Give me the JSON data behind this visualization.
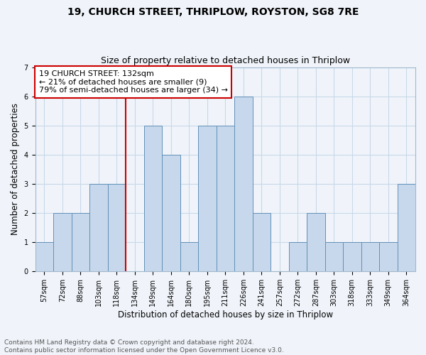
{
  "title": "19, CHURCH STREET, THRIPLOW, ROYSTON, SG8 7RE",
  "subtitle": "Size of property relative to detached houses in Thriplow",
  "xlabel": "Distribution of detached houses by size in Thriplow",
  "ylabel": "Number of detached properties",
  "bin_labels": [
    "57sqm",
    "72sqm",
    "88sqm",
    "103sqm",
    "118sqm",
    "134sqm",
    "149sqm",
    "164sqm",
    "180sqm",
    "195sqm",
    "211sqm",
    "226sqm",
    "241sqm",
    "257sqm",
    "272sqm",
    "287sqm",
    "303sqm",
    "318sqm",
    "333sqm",
    "349sqm",
    "364sqm"
  ],
  "bar_heights": [
    1,
    2,
    2,
    3,
    3,
    0,
    5,
    4,
    1,
    5,
    5,
    6,
    2,
    0,
    1,
    2,
    1,
    1,
    1,
    1,
    3
  ],
  "bar_color": "#c8d8ec",
  "bar_edge_color": "#6090b8",
  "bar_linewidth": 0.7,
  "grid_color": "#c8d8e8",
  "background_color": "#f0f4fa",
  "vline_x": 5.0,
  "vline_color": "#cc0000",
  "annotation_text": "19 CHURCH STREET: 132sqm\n← 21% of detached houses are smaller (9)\n79% of semi-detached houses are larger (34) →",
  "annotation_box_color": "#cc0000",
  "footer_text": "Contains HM Land Registry data © Crown copyright and database right 2024.\nContains public sector information licensed under the Open Government Licence v3.0.",
  "ylim": [
    0,
    7
  ],
  "yticks": [
    0,
    1,
    2,
    3,
    4,
    5,
    6,
    7
  ],
  "title_fontsize": 10,
  "subtitle_fontsize": 9,
  "axis_label_fontsize": 8.5,
  "tick_fontsize": 7,
  "footer_fontsize": 6.5,
  "annotation_fontsize": 8
}
